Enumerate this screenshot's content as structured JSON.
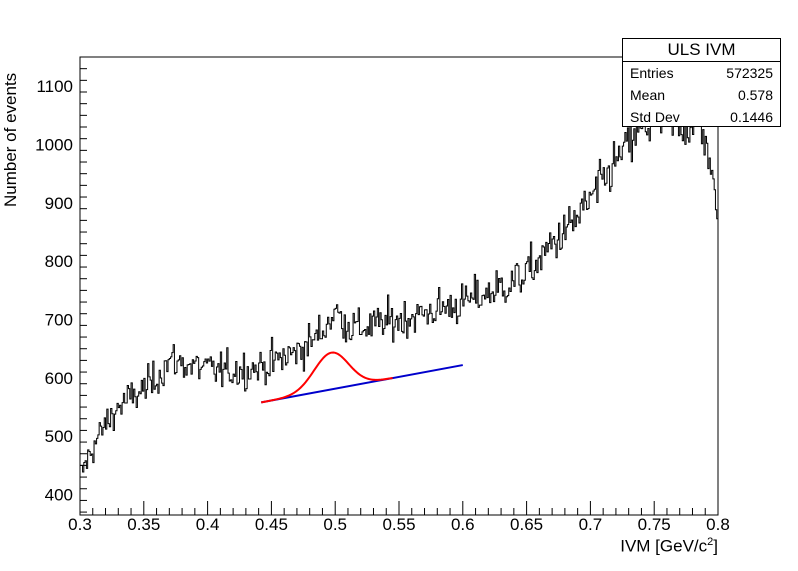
{
  "chart_data": {
    "type": "histogram",
    "title": "",
    "xlabel": "IVM [GeV/c",
    "xlabel_sup": "2",
    "xlabel_end": "]",
    "ylabel": "Number of events",
    "xlim": [
      0.3,
      0.8
    ],
    "ylim": [
      365,
      1150
    ],
    "x_ticks": [
      "0.3",
      "0.35",
      "0.4",
      "0.45",
      "0.5",
      "0.55",
      "0.6",
      "0.65",
      "0.7",
      "0.75",
      "0.8"
    ],
    "y_ticks": [
      "400",
      "500",
      "600",
      "700",
      "800",
      "900",
      "1000",
      "1100"
    ],
    "grid": false,
    "colors": {
      "histogram": "#000000",
      "signal_fit": "#ff0000",
      "background_fit": "#0000cc"
    },
    "stats": {
      "title": "ULS IVM",
      "entries_label": "Entries",
      "entries": "572325",
      "mean_label": "Mean",
      "mean": "0.578",
      "stddev_label": "Std Dev",
      "stddev": "0.1446"
    },
    "histogram_profile": {
      "bins": 500,
      "x": [
        0.3,
        0.31,
        0.32,
        0.33,
        0.34,
        0.35,
        0.36,
        0.37,
        0.38,
        0.39,
        0.4,
        0.41,
        0.42,
        0.43,
        0.44,
        0.45,
        0.46,
        0.47,
        0.48,
        0.49,
        0.5,
        0.51,
        0.52,
        0.53,
        0.54,
        0.55,
        0.56,
        0.57,
        0.58,
        0.59,
        0.6,
        0.61,
        0.62,
        0.63,
        0.64,
        0.65,
        0.66,
        0.67,
        0.68,
        0.69,
        0.7,
        0.71,
        0.72,
        0.73,
        0.74,
        0.75,
        0.76,
        0.77,
        0.78,
        0.79,
        0.8
      ],
      "y": [
        430,
        480,
        520,
        550,
        565,
        580,
        600,
        630,
        625,
        620,
        615,
        612,
        612,
        615,
        618,
        625,
        635,
        645,
        660,
        680,
        715,
        690,
        685,
        690,
        695,
        700,
        705,
        710,
        718,
        722,
        728,
        738,
        745,
        755,
        765,
        780,
        800,
        830,
        850,
        875,
        905,
        935,
        970,
        1000,
        1025,
        1040,
        1045,
        1035,
        1030,
        1020,
        865
      ]
    },
    "background_fit": {
      "x": [
        0.442,
        0.6
      ],
      "y": [
        558,
        622
      ]
    },
    "signal_fit": {
      "x_range": [
        0.442,
        0.545
      ],
      "mean": 0.497,
      "sigma": 0.0135,
      "amplitude": 63
    }
  }
}
